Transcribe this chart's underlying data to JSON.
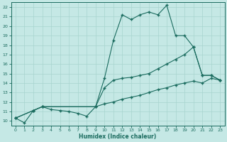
{
  "xlabel": "Humidex (Indice chaleur)",
  "xlim": [
    -0.5,
    23.5
  ],
  "ylim": [
    9.5,
    22.5
  ],
  "xticks": [
    0,
    1,
    2,
    3,
    4,
    5,
    6,
    7,
    8,
    9,
    10,
    11,
    12,
    13,
    14,
    15,
    16,
    17,
    18,
    19,
    20,
    21,
    22,
    23
  ],
  "yticks": [
    10,
    11,
    12,
    13,
    14,
    15,
    16,
    17,
    18,
    19,
    20,
    21,
    22
  ],
  "bg_color": "#c5e8e5",
  "line_color": "#1a6b5e",
  "grid_color": "#a8d4cf",
  "curve1_x": [
    0,
    1,
    2,
    3,
    4,
    5,
    6,
    7,
    8,
    9,
    10,
    11,
    12,
    13,
    14,
    15,
    16,
    17,
    18,
    19,
    20,
    21,
    22,
    23
  ],
  "curve1_y": [
    10.3,
    9.8,
    11.1,
    11.5,
    11.2,
    11.1,
    11.0,
    10.8,
    10.5,
    11.5,
    14.5,
    18.5,
    21.2,
    20.7,
    21.2,
    21.5,
    21.2,
    22.2,
    19.0,
    19.0,
    17.8,
    14.8,
    14.8,
    14.3
  ],
  "curve2_x": [
    0,
    2,
    3,
    9,
    10,
    11,
    12,
    13,
    14,
    15,
    16,
    17,
    18,
    19,
    20,
    21,
    22,
    23
  ],
  "curve2_y": [
    10.3,
    11.1,
    11.5,
    11.5,
    13.5,
    14.3,
    14.5,
    14.6,
    14.8,
    15.0,
    15.5,
    16.0,
    16.5,
    17.0,
    17.8,
    14.8,
    14.8,
    14.3
  ],
  "curve3_x": [
    0,
    2,
    3,
    9,
    10,
    11,
    12,
    13,
    14,
    15,
    16,
    17,
    18,
    19,
    20,
    21,
    22,
    23
  ],
  "curve3_y": [
    10.3,
    11.1,
    11.5,
    11.5,
    11.8,
    12.0,
    12.3,
    12.5,
    12.7,
    13.0,
    13.3,
    13.5,
    13.8,
    14.0,
    14.2,
    14.0,
    14.5,
    14.3
  ]
}
